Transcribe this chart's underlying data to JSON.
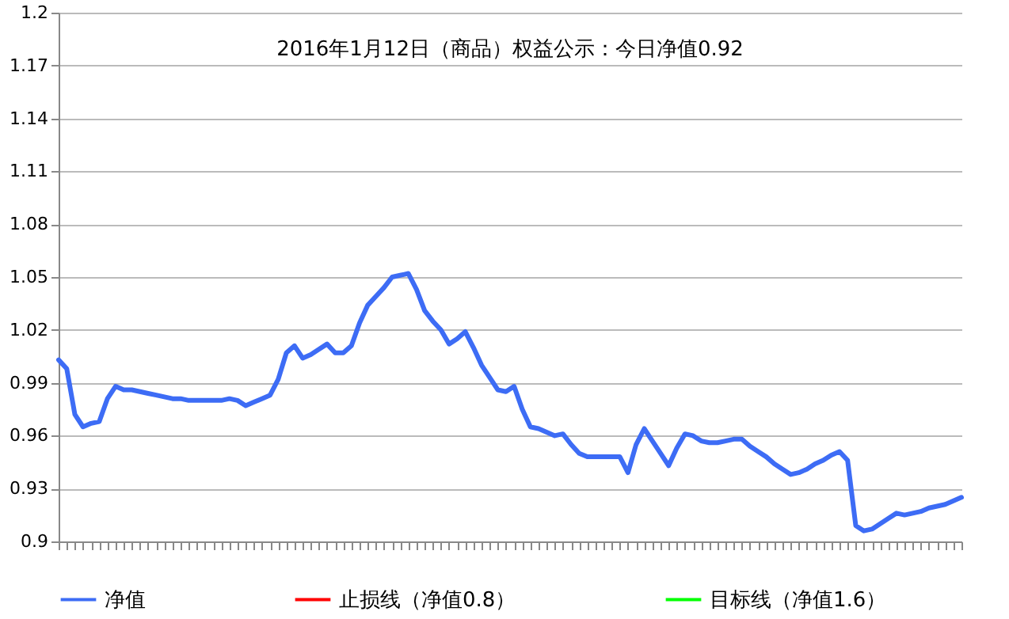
{
  "chart_data": {
    "type": "line",
    "title": "2016年1月12日（商品）权益公示：今日净值0.92",
    "categories": [
      null,
      null,
      null,
      null,
      null,
      null,
      null,
      null,
      null,
      null,
      null,
      null,
      null,
      null,
      null,
      null,
      null,
      null,
      null,
      null,
      null,
      null,
      null,
      null,
      null,
      null,
      null,
      null,
      null,
      null,
      null,
      null,
      null,
      null,
      null,
      null,
      null,
      null,
      null,
      null,
      null,
      null,
      null,
      null,
      null,
      null,
      null,
      null,
      null,
      null,
      null,
      null,
      null,
      null,
      null,
      null,
      null,
      null,
      null,
      null,
      null,
      null,
      null,
      null,
      null,
      null,
      null,
      null,
      null,
      null,
      null,
      null,
      null,
      null,
      null,
      null,
      null,
      null,
      null,
      null,
      null,
      null,
      null,
      null,
      null,
      null,
      null,
      null,
      null,
      null,
      null,
      null,
      null,
      null,
      null,
      null,
      null,
      null,
      null,
      null,
      null,
      null,
      null,
      null,
      null,
      null,
      null,
      null,
      null,
      null,
      null,
      null
    ],
    "series": [
      {
        "name": "净值",
        "color": "#3d6cf5",
        "values": [
          1.003,
          0.998,
          0.972,
          0.965,
          0.967,
          0.968,
          0.981,
          0.988,
          0.986,
          0.986,
          0.985,
          0.984,
          0.983,
          0.982,
          0.981,
          0.981,
          0.98,
          0.98,
          0.98,
          0.98,
          0.98,
          0.981,
          0.98,
          0.977,
          0.979,
          0.981,
          0.983,
          0.992,
          1.007,
          1.011,
          1.004,
          1.006,
          1.009,
          1.012,
          1.007,
          1.007,
          1.011,
          1.024,
          1.034,
          1.039,
          1.044,
          1.05,
          1.051,
          1.052,
          1.043,
          1.031,
          1.025,
          1.02,
          1.012,
          1.015,
          1.019,
          1.01,
          1.0,
          0.993,
          0.986,
          0.985,
          0.988,
          0.975,
          0.965,
          0.964,
          0.962,
          0.96,
          0.961,
          0.955,
          0.95,
          0.948,
          0.948,
          0.948,
          0.948,
          0.948,
          0.939,
          0.955,
          0.964,
          0.957,
          0.95,
          0.943,
          0.953,
          0.961,
          0.96,
          0.957,
          0.956,
          0.956,
          0.957,
          0.958,
          0.958,
          0.954,
          0.951,
          0.948,
          0.944,
          0.941,
          0.938,
          0.939,
          0.941,
          0.944,
          0.946,
          0.949,
          0.951,
          0.946,
          0.909,
          0.906,
          0.907,
          0.91,
          0.913,
          0.916,
          0.915,
          0.916,
          0.917,
          0.919,
          0.92,
          0.921,
          0.923,
          0.925
        ]
      },
      {
        "name": "止损线（净值0.8）",
        "color": "#ff0000",
        "values": [
          null,
          null,
          null,
          null,
          null,
          null,
          null,
          null,
          null,
          null,
          null,
          null,
          null,
          null,
          null,
          null,
          null,
          null,
          null,
          null,
          null,
          null,
          null,
          null,
          null,
          null,
          null,
          null,
          null,
          null,
          null,
          null,
          null,
          null,
          null,
          null,
          null,
          null,
          null,
          null,
          null,
          null,
          null,
          null,
          null,
          null,
          null,
          null,
          null,
          null,
          null,
          null,
          null,
          null,
          null,
          null,
          null,
          null,
          null,
          null,
          null,
          null,
          null,
          null,
          null,
          null,
          null,
          null,
          null,
          null,
          null,
          null,
          null,
          null,
          null,
          null,
          null,
          null,
          null,
          null,
          null,
          null,
          null,
          null,
          null,
          null,
          null,
          null,
          null,
          null,
          null,
          null,
          null,
          null,
          null,
          null,
          null,
          null,
          null,
          null,
          null,
          null,
          null,
          null,
          null,
          null,
          null,
          null,
          null,
          null,
          null,
          null
        ]
      },
      {
        "name": "目标线（净值1.6）",
        "color": "#00ff00",
        "values": [
          null,
          null,
          null,
          null,
          null,
          null,
          null,
          null,
          null,
          null,
          null,
          null,
          null,
          null,
          null,
          null,
          null,
          null,
          null,
          null,
          null,
          null,
          null,
          null,
          null,
          null,
          null,
          null,
          null,
          null,
          null,
          null,
          null,
          null,
          null,
          null,
          null,
          null,
          null,
          null,
          null,
          null,
          null,
          null,
          null,
          null,
          null,
          null,
          null,
          null,
          null,
          null,
          null,
          null,
          null,
          null,
          null,
          null,
          null,
          null,
          null,
          null,
          null,
          null,
          null,
          null,
          null,
          null,
          null,
          null,
          null,
          null,
          null,
          null,
          null,
          null,
          null,
          null,
          null,
          null,
          null,
          null,
          null,
          null,
          null,
          null,
          null,
          null,
          null,
          null,
          null,
          null,
          null,
          null,
          null,
          null,
          null,
          null,
          null,
          null,
          null,
          null,
          null,
          null,
          null,
          null,
          null,
          null,
          null,
          null,
          null,
          null
        ]
      }
    ],
    "ylim": [
      0.9,
      1.2
    ],
    "yticks": [
      0.9,
      0.93,
      0.96,
      0.99,
      1.02,
      1.05,
      1.08,
      1.11,
      1.14,
      1.17,
      1.2
    ],
    "tick_labels": "y",
    "grid": "y",
    "legend": "bottom",
    "marker": "none",
    "line_style": "solid"
  }
}
